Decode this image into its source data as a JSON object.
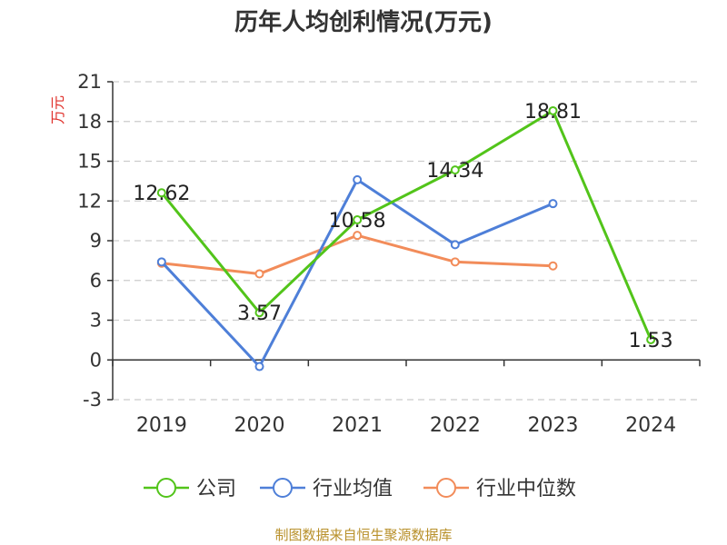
{
  "title": "历年人均创利情况(万元)",
  "source_note": "制图数据来自恒生聚源数据库",
  "chart_data": {
    "type": "line",
    "title": "历年人均创利情况(万元)",
    "ylabel": "万元",
    "xlabel": "",
    "categories": [
      "2019",
      "2020",
      "2021",
      "2022",
      "2023",
      "2024"
    ],
    "ylim": [
      -3,
      21
    ],
    "yticks": [
      -3,
      0,
      3,
      6,
      9,
      12,
      15,
      18,
      21
    ],
    "ytick_labels": [
      "-3",
      "0",
      "3",
      "6",
      "9",
      "12",
      "15",
      "18",
      "21"
    ],
    "grid": true,
    "legend_position": "bottom",
    "series": [
      {
        "name": "公司",
        "color": "#52c41a",
        "values": [
          12.62,
          3.57,
          10.58,
          14.34,
          18.81,
          1.53
        ],
        "labels": [
          "12.62",
          "3.57",
          "10.58",
          "14.34",
          "18.81",
          "1.53"
        ]
      },
      {
        "name": "行业均值",
        "color": "#4e7fd8",
        "values": [
          7.4,
          -0.5,
          13.6,
          8.7,
          11.8,
          null
        ],
        "labels": null
      },
      {
        "name": "行业中位数",
        "color": "#f28c5a",
        "values": [
          7.3,
          6.5,
          9.4,
          7.4,
          7.1,
          null
        ],
        "labels": null
      }
    ]
  }
}
